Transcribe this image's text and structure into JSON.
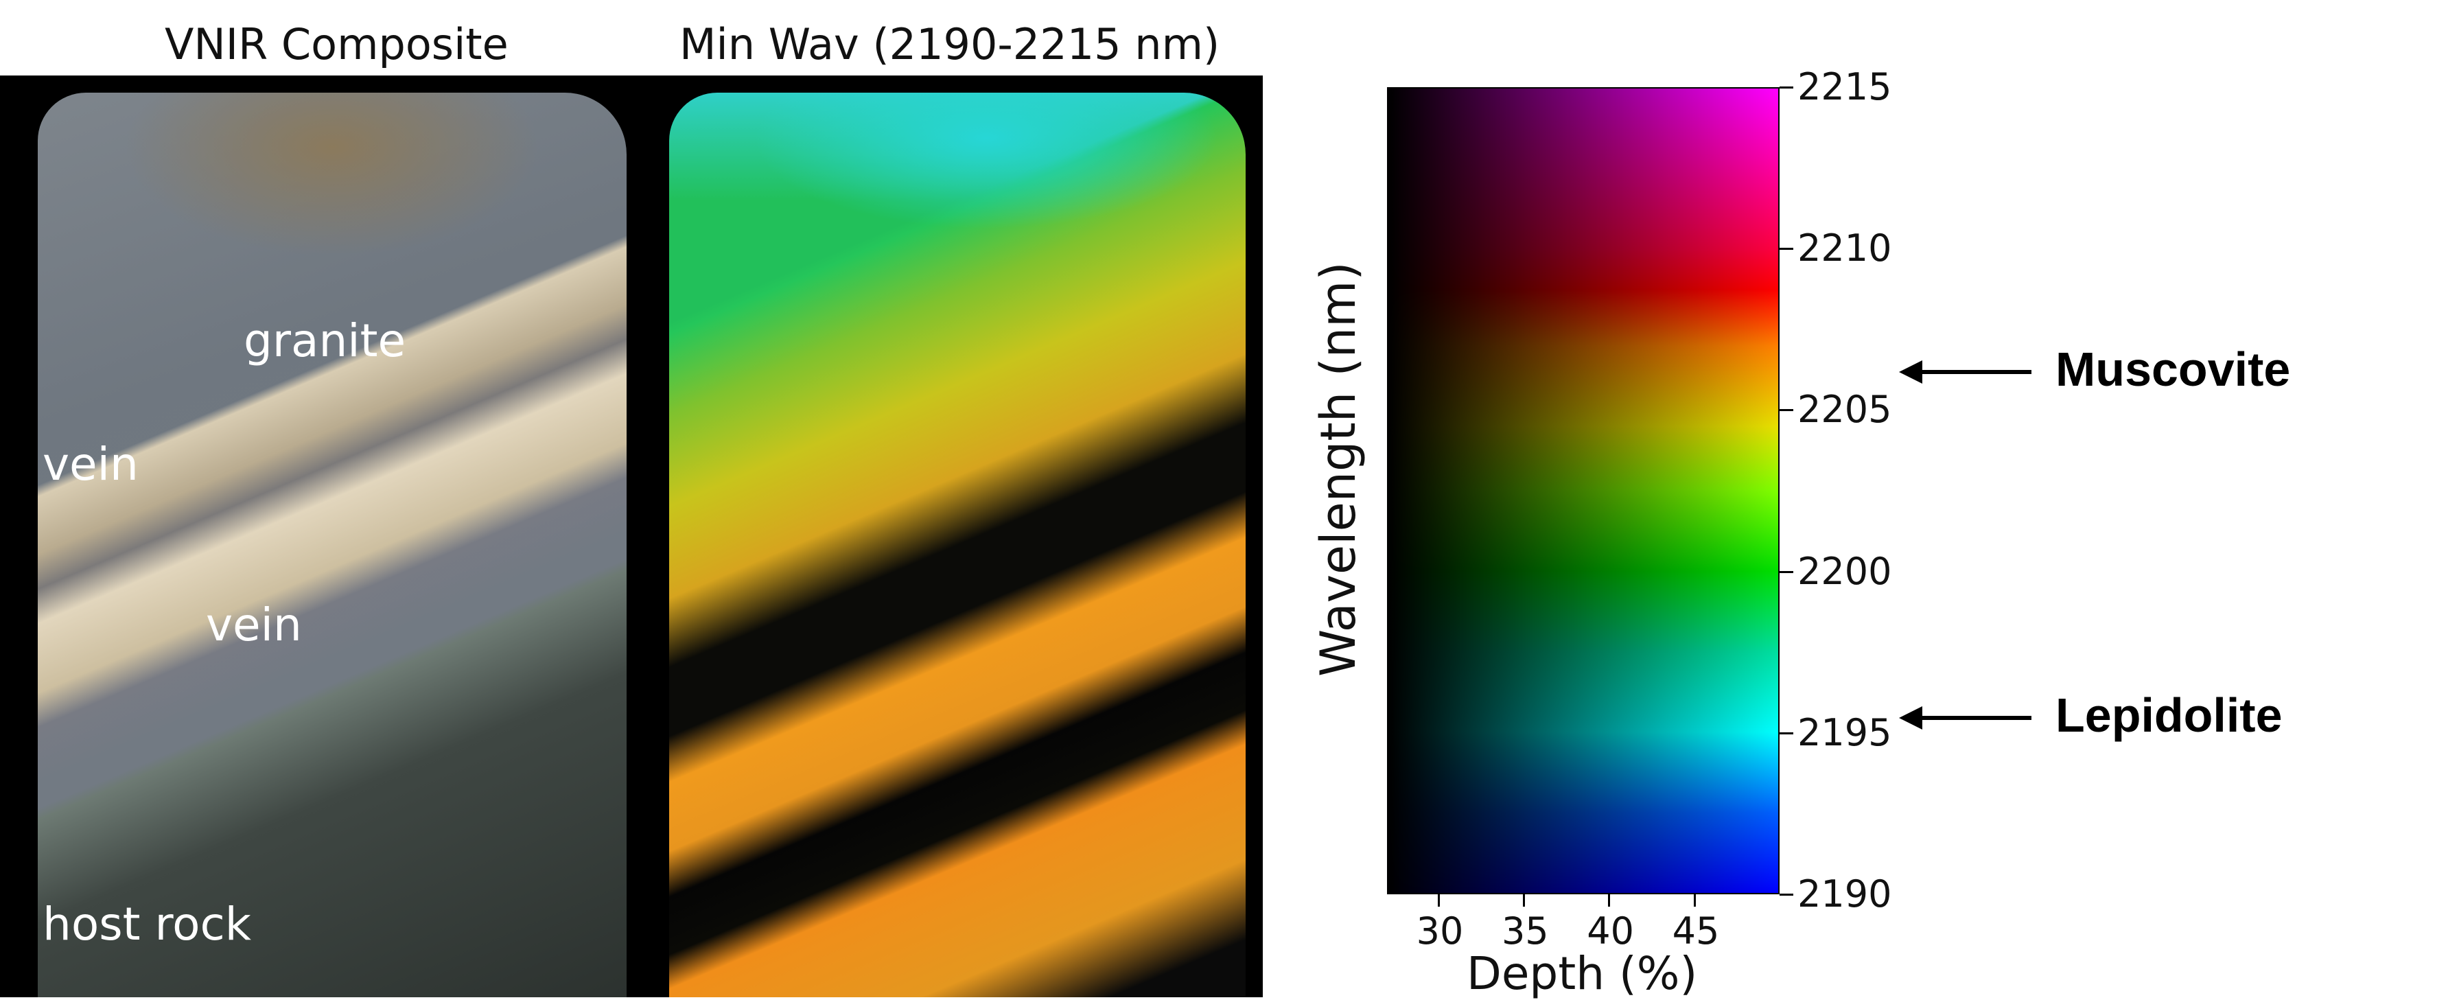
{
  "titles": {
    "left": "VNIR Composite",
    "right": "Min Wav (2190-2215 nm)"
  },
  "core_labels": {
    "granite": "granite",
    "vein_upper": "vein",
    "vein_lower": "vein",
    "host_rock": "host rock"
  },
  "colorbar": {
    "y_label": "Wavelength (nm)",
    "x_label": "Depth (%)",
    "y_ticks": [
      "2215",
      "2210",
      "2205",
      "2200",
      "2195",
      "2190"
    ],
    "x_ticks": [
      "30",
      "35",
      "40",
      "45"
    ],
    "y_range": [
      2190,
      2215
    ],
    "x_range": [
      27,
      50
    ],
    "y_colormap": [
      "#0000ff",
      "#00ffff",
      "#00e000",
      "#e8e000",
      "#ff0000",
      "#ff00ff"
    ],
    "x_fade": "black to full color"
  },
  "annotations": {
    "muscovite": "Muscovite",
    "lepidolite": "Lepidolite"
  }
}
